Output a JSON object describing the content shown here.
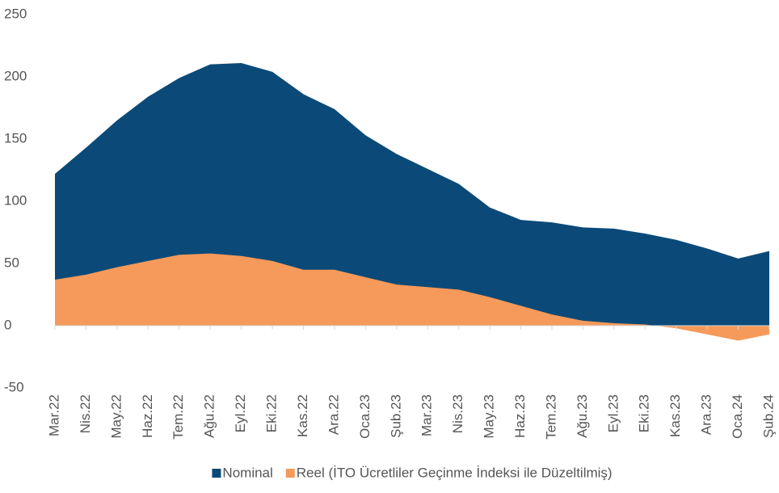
{
  "chart_data": {
    "type": "area",
    "categories": [
      "Mar.22",
      "Nis.22",
      "May.22",
      "Haz.22",
      "Tem.22",
      "Ağu.22",
      "Eyl.22",
      "Eki.22",
      "Kas.22",
      "Ara.22",
      "Oca.23",
      "Şub.23",
      "Mar.23",
      "Nis.23",
      "May.23",
      "Haz.23",
      "Tem.23",
      "Ağu.23",
      "Eyl.23",
      "Eki.23",
      "Kas.23",
      "Ara.23",
      "Oca.24",
      "Şub.24"
    ],
    "series": [
      {
        "name": "Nominal",
        "color": "#0b4a78",
        "values": [
          122,
          143,
          165,
          184,
          199,
          210,
          211,
          204,
          186,
          174,
          153,
          138,
          126,
          114,
          95,
          85,
          83,
          79,
          78,
          74,
          69,
          62,
          54,
          60
        ]
      },
      {
        "name": "Reel (İTO Ücretliler Geçinme İndeksi ile Düzeltilmiş)",
        "color": "#f59a5a",
        "values": [
          37,
          41,
          47,
          52,
          57,
          58,
          56,
          52,
          45,
          45,
          39,
          33,
          31,
          29,
          23,
          16,
          9,
          4,
          2,
          1,
          -2,
          -7,
          -12,
          -7
        ]
      }
    ],
    "ylim": [
      -50,
      250
    ],
    "yticks": [
      -50,
      0,
      50,
      100,
      150,
      200,
      250
    ],
    "grid": false,
    "legend": "bottom"
  }
}
